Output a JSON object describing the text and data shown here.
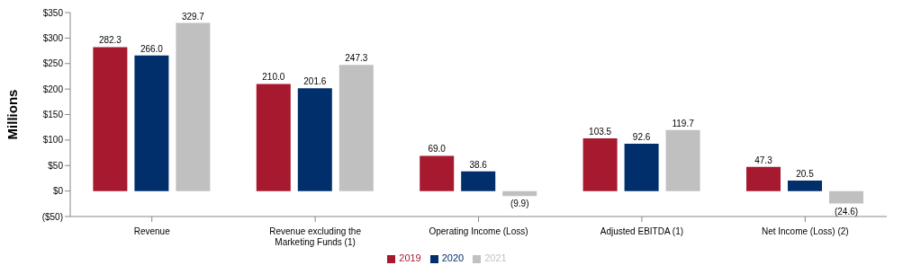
{
  "chart_data": {
    "type": "bar",
    "ylabel": "Millions",
    "categories": [
      "Revenue",
      "Revenue excluding the Marketing Funds (1)",
      "Operating Income (Loss)",
      "Adjusted EBITDA (1)",
      "Net Income (Loss) (2)"
    ],
    "series": [
      {
        "name": "2019",
        "color": "#a6192e",
        "values": [
          282.3,
          210.0,
          69.0,
          103.5,
          47.3
        ],
        "value_labels": [
          "282.3",
          "210.0",
          "69.0",
          "103.5",
          "47.3"
        ]
      },
      {
        "name": "2020",
        "color": "#002f6c",
        "values": [
          266.0,
          201.6,
          38.6,
          92.6,
          20.5
        ],
        "value_labels": [
          "266.0",
          "201.6",
          "38.6",
          "92.6",
          "20.5"
        ]
      },
      {
        "name": "2021",
        "color": "#c0c0c0",
        "values": [
          329.7,
          247.3,
          -9.9,
          119.7,
          -24.6
        ],
        "value_labels": [
          "329.7",
          "247.3",
          "(9.9)",
          "119.7",
          "(24.6)"
        ]
      }
    ],
    "ylim": [
      -50,
      350
    ],
    "yticks": [
      {
        "value": -50,
        "label": "($50)"
      },
      {
        "value": 0,
        "label": "$0"
      },
      {
        "value": 50,
        "label": "$50"
      },
      {
        "value": 100,
        "label": "$100"
      },
      {
        "value": 150,
        "label": "$150"
      },
      {
        "value": 200,
        "label": "$200"
      },
      {
        "value": 250,
        "label": "$250"
      },
      {
        "value": 300,
        "label": "$300"
      },
      {
        "value": 350,
        "label": "$350"
      }
    ],
    "grid": false,
    "legend": "bottom"
  }
}
